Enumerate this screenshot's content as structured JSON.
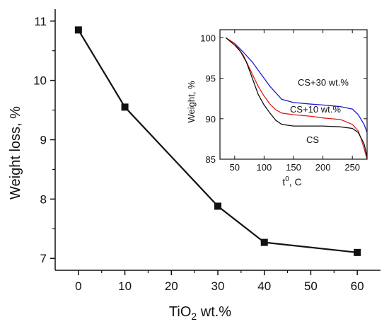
{
  "chart_data": [
    {
      "type": "line",
      "xlabel_main": "TiO",
      "xlabel_sub": "2",
      "xlabel_rest": " wt.%",
      "ylabel": "Weight loss, %",
      "xlim": [
        -5,
        65
      ],
      "ylim": [
        6.8,
        11.2
      ],
      "xticks": [
        0,
        10,
        20,
        30,
        40,
        50,
        60
      ],
      "yticks": [
        7,
        8,
        9,
        10,
        11
      ],
      "series": [
        {
          "x": [
            0,
            10,
            30,
            40,
            60
          ],
          "y": [
            10.85,
            9.55,
            7.88,
            7.27,
            7.1
          ]
        }
      ],
      "marker": "square"
    },
    {
      "type": "line",
      "xlabel_main": "t",
      "xlabel_sup": "0",
      "xlabel_rest": ", C",
      "ylabel": "Weight, %",
      "xlim": [
        25,
        275
      ],
      "ylim": [
        85,
        101
      ],
      "xticks": [
        50,
        100,
        150,
        200,
        250
      ],
      "yticks": [
        85,
        90,
        95,
        100
      ],
      "series": [
        {
          "name": "CS+30 wt.%",
          "color": "#1a1adb",
          "x": [
            35,
            50,
            65,
            80,
            90,
            100,
            110,
            120,
            130,
            150,
            180,
            200,
            230,
            250,
            260,
            270,
            275
          ],
          "y": [
            100,
            99.3,
            98.2,
            97,
            96,
            95,
            94,
            93.2,
            92.4,
            92,
            91.8,
            91.7,
            91.5,
            91.2,
            90.5,
            89.3,
            88.3
          ]
        },
        {
          "name": "CS+10 wt.%",
          "color": "#e21b1b",
          "x": [
            35,
            50,
            65,
            80,
            90,
            100,
            110,
            120,
            130,
            150,
            180,
            200,
            230,
            250,
            260,
            265,
            270,
            275
          ],
          "y": [
            100,
            99.3,
            97.8,
            95.5,
            94,
            92.8,
            91.8,
            91.1,
            90.7,
            90.5,
            90.3,
            90.1,
            89.9,
            89.3,
            88.5,
            87.5,
            86.3,
            85
          ]
        },
        {
          "name": "CS",
          "color": "#111111",
          "x": [
            35,
            50,
            60,
            70,
            80,
            90,
            100,
            110,
            120,
            130,
            150,
            200,
            230,
            250,
            260,
            265,
            270,
            275
          ],
          "y": [
            100,
            99.1,
            98.3,
            97,
            95,
            93,
            91.7,
            90.7,
            89.8,
            89.3,
            89.1,
            89.1,
            89.0,
            88.8,
            88.3,
            87.6,
            86.9,
            85.3
          ]
        }
      ]
    }
  ]
}
